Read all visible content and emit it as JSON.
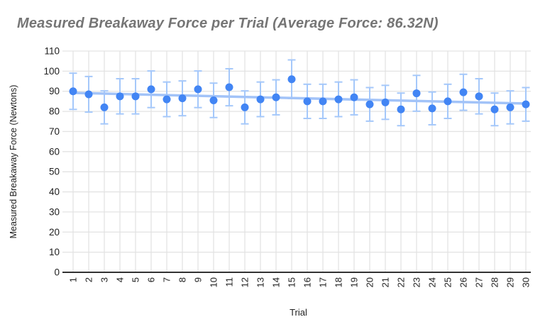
{
  "title": "Measured Breakaway Force per Trial (Average Force: 86.32N)",
  "average_force_label": "86.32N",
  "colors": {
    "point": "#4285f4",
    "error_bar": "#a5c8fa",
    "trendline": "#a2c3f8",
    "gridline": "#e3e3e3",
    "axis_line": "#333333",
    "title_text": "#757575",
    "tick_text": "#202020"
  },
  "chart_data": {
    "type": "scatter",
    "title": "Measured Breakaway Force per Trial (Average Force: 86.32N)",
    "xlabel": "Trial",
    "ylabel": "Measured Breakaway Force (Newtons)",
    "x": [
      1,
      2,
      3,
      4,
      5,
      6,
      7,
      8,
      9,
      10,
      11,
      12,
      13,
      14,
      15,
      16,
      17,
      18,
      19,
      20,
      21,
      22,
      23,
      24,
      25,
      26,
      27,
      28,
      29,
      30
    ],
    "values": [
      90,
      88.5,
      82,
      87.5,
      87.5,
      91,
      86,
      86.5,
      91,
      85.5,
      92,
      82,
      86,
      87,
      96,
      85,
      85,
      86,
      87,
      83.5,
      84.5,
      81,
      89,
      81.5,
      85,
      89.5,
      87.5,
      81,
      82,
      83.5
    ],
    "average_value": 86.32,
    "error_bars_pct": 10,
    "trendline": {
      "start_x": 1,
      "start_value": 89.2,
      "end_x": 30,
      "end_value": 83.9
    },
    "ylim": [
      0,
      110
    ],
    "ytick_step": 10,
    "yticks": [
      0,
      10,
      20,
      30,
      40,
      50,
      60,
      70,
      80,
      90,
      100,
      110
    ],
    "grid": true,
    "legend": "none"
  }
}
